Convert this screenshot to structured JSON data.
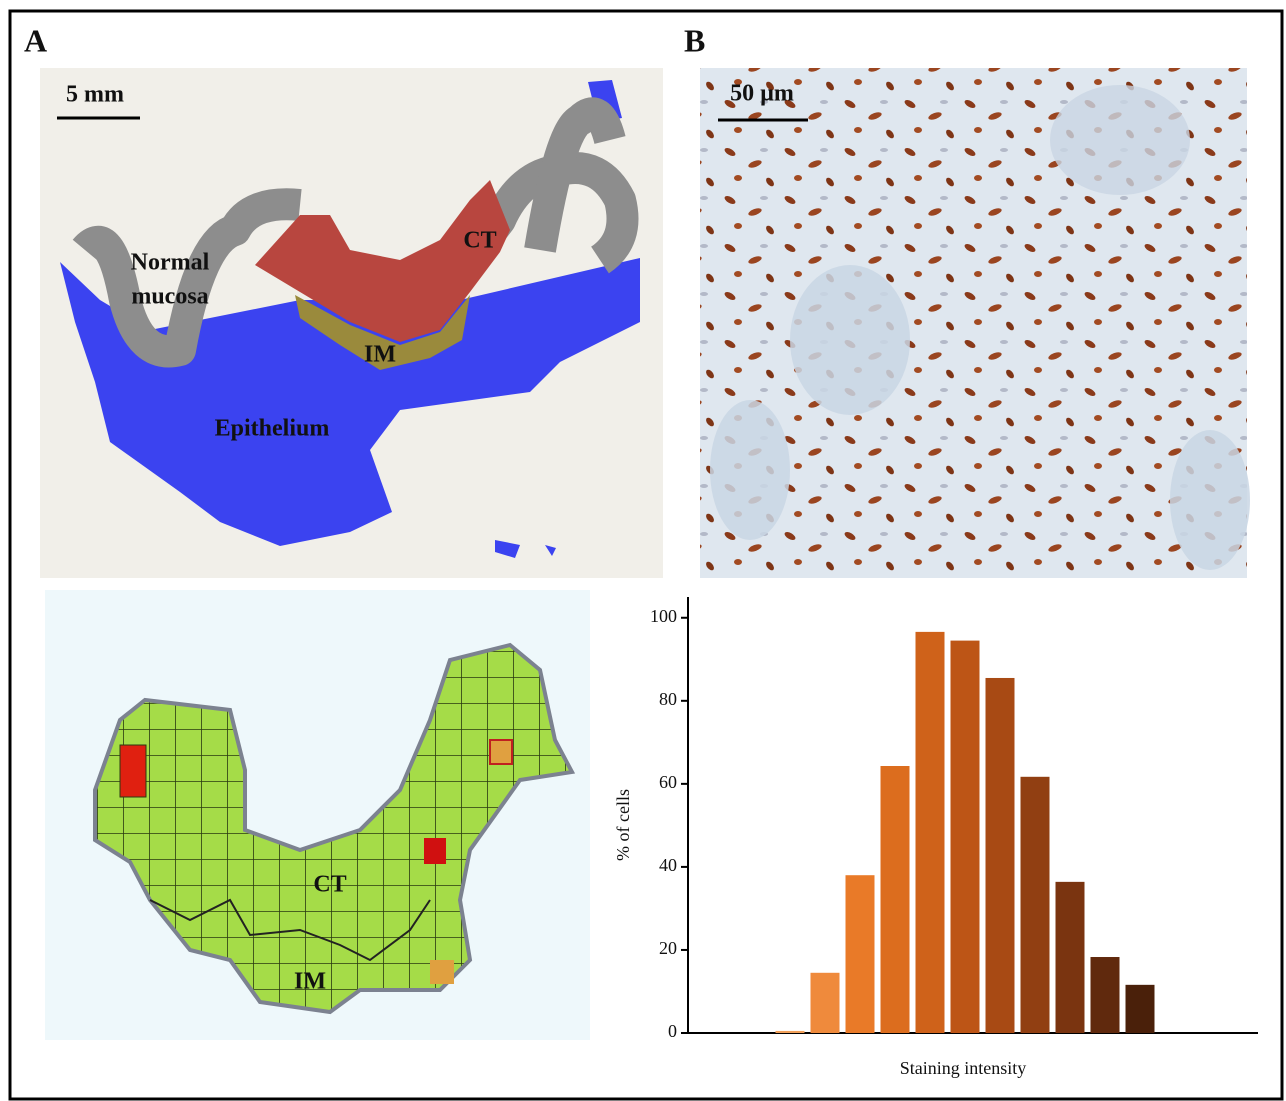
{
  "panels": {
    "A": {
      "label": "A",
      "scale_bar": "5 mm",
      "regions": {
        "normal_mucosa": [
          "Normal",
          "mucosa"
        ],
        "ct": "CT",
        "im": "IM",
        "epithelium": "Epithelium"
      },
      "map_labels": {
        "ct": "CT",
        "im": "IM"
      }
    },
    "B": {
      "label": "B",
      "scale_bar": "50 µm"
    }
  },
  "chart_data": {
    "type": "bar",
    "ylabel": "% of cells",
    "xlabel": "Staining intensity",
    "categories": [
      null,
      null,
      null,
      null,
      null,
      null,
      null,
      null,
      null,
      null,
      null
    ],
    "values": [
      0.5,
      14.5,
      38,
      64.3,
      96.6,
      94.5,
      85.5,
      61.7,
      36.4,
      18.3,
      11.6
    ],
    "colors": [
      "#f2a05a",
      "#ef8a3c",
      "#e97a28",
      "#dc6d1e",
      "#cf621a",
      "#bd5516",
      "#a84a14",
      "#913f12",
      "#7a3410",
      "#60290d",
      "#4a200a"
    ],
    "ylim": [
      0,
      105
    ],
    "yticks": [
      0,
      20,
      40,
      60,
      80,
      100
    ],
    "grid": false
  }
}
